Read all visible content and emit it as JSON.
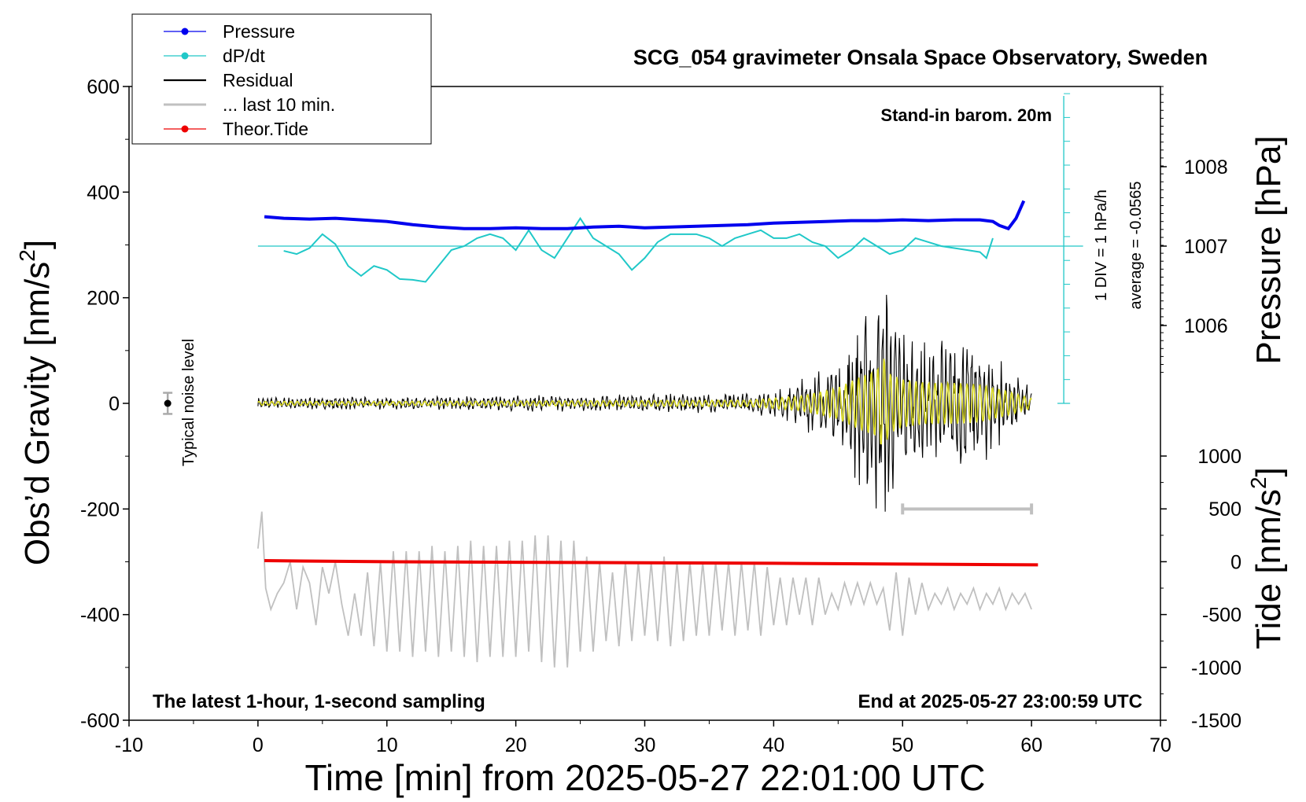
{
  "chart_data": {
    "type": "line",
    "title": "SCG_054 gravimeter Onsala Space Observatory, Sweden",
    "xlabel": "Time [min] from 2025-05-27 22:01:00 UTC",
    "xlim": [
      -10,
      70
    ],
    "x_ticks": [
      "-10",
      "0",
      "10",
      "20",
      "30",
      "40",
      "50",
      "60",
      "70"
    ],
    "left_axis": {
      "label": "Obs’d Gravity [nm/s",
      "label_sup": "2",
      "label_close": "]",
      "ylim": [
        -600,
        600
      ],
      "ticks": [
        "-600",
        "-400",
        "-200",
        "0",
        "200",
        "400",
        "600"
      ]
    },
    "right_pressure_axis": {
      "label": "Pressure [hPa]",
      "ticks": [
        "1006",
        "1007",
        "1008"
      ]
    },
    "right_tide_axis": {
      "label": "Tide [nm/s",
      "label_sup": "2",
      "label_close": "]",
      "ylim": [
        -1500,
        1000
      ],
      "ticks": [
        "-1500",
        "-1000",
        "-500",
        "0",
        "500",
        "1000"
      ]
    },
    "legend": {
      "placement": "top-left",
      "entries": [
        {
          "name": "Pressure",
          "color": "#0000ee",
          "marker": true
        },
        {
          "name": "dP/dt",
          "color": "#20c8c8",
          "marker": true
        },
        {
          "name": "Residual",
          "color": "#000000",
          "marker": false
        },
        {
          "name": "... last 10 min.",
          "color": "#c0c0c0",
          "marker": false
        },
        {
          "name": "Theor.Tide",
          "color": "#ee0000",
          "marker": true
        }
      ]
    },
    "annotations": {
      "barometer": "Stand-in barom. 20m",
      "div_note": "1 DIV = 1 hPa/h",
      "average_note": "average = -0.0565",
      "noise_label": "Typical noise level",
      "bottom_left": "The latest 1-hour, 1-second sampling",
      "bottom_right": "End at 2025-05-27 23:00:59 UTC"
    },
    "series": [
      {
        "name": "Pressure",
        "color": "#0000ee",
        "x": [
          0.5,
          2,
          4,
          6,
          8,
          10,
          12,
          14,
          16,
          18,
          20,
          22,
          24,
          26,
          28,
          30,
          32,
          34,
          36,
          38,
          40,
          42,
          44,
          46,
          48,
          50,
          52,
          54,
          56,
          57,
          57.5,
          58.2,
          58.8,
          59.4
        ],
        "y": [
          1007.37,
          1007.35,
          1007.34,
          1007.35,
          1007.33,
          1007.31,
          1007.27,
          1007.24,
          1007.22,
          1007.22,
          1007.23,
          1007.22,
          1007.22,
          1007.24,
          1007.25,
          1007.23,
          1007.24,
          1007.25,
          1007.26,
          1007.27,
          1007.29,
          1007.3,
          1007.31,
          1007.32,
          1007.32,
          1007.33,
          1007.32,
          1007.33,
          1007.33,
          1007.31,
          1007.26,
          1007.22,
          1007.35,
          1007.57
        ]
      },
      {
        "name": "dP/dt",
        "color": "#20c8c8",
        "baseline": 1007,
        "x": [
          2,
          3,
          4,
          5,
          6,
          7,
          8,
          9,
          10,
          11,
          12,
          13,
          14,
          15,
          16,
          17,
          18,
          19,
          20,
          21,
          22,
          23,
          24,
          25,
          26,
          27,
          28,
          29,
          30,
          31,
          32,
          33,
          34,
          35,
          36,
          37,
          38,
          39,
          40,
          41,
          42,
          43,
          44,
          45,
          46,
          47,
          48,
          49,
          50,
          51,
          52,
          53,
          54,
          55,
          56,
          56.5,
          57
        ],
        "y": [
          0.12,
          0.2,
          0.05,
          -0.3,
          -0.05,
          0.5,
          0.75,
          0.5,
          0.6,
          0.83,
          0.85,
          0.9,
          0.5,
          0.1,
          0.0,
          -0.2,
          -0.3,
          -0.2,
          0.1,
          -0.4,
          0.1,
          0.3,
          -0.2,
          -0.7,
          -0.2,
          0.0,
          0.2,
          0.6,
          0.3,
          -0.1,
          -0.3,
          -0.3,
          -0.3,
          -0.2,
          0.0,
          -0.2,
          -0.3,
          -0.4,
          -0.2,
          -0.2,
          -0.3,
          -0.1,
          0.0,
          0.3,
          0.1,
          -0.2,
          0.0,
          0.2,
          0.1,
          -0.2,
          -0.1,
          0.0,
          0.05,
          0.1,
          0.15,
          0.3,
          -0.2
        ]
      },
      {
        "name": "Residual",
        "color": "#000000",
        "envelope_x": [
          0,
          10,
          20,
          30,
          38,
          42,
          44,
          45,
          46,
          47,
          48,
          48.5,
          49,
          50,
          52,
          54,
          56,
          58,
          60
        ],
        "envelope_y": [
          12,
          12,
          15,
          18,
          20,
          45,
          80,
          100,
          140,
          180,
          210,
          300,
          190,
          150,
          130,
          130,
          120,
          80,
          30
        ]
      },
      {
        "name": "... last 10 min.",
        "color": "#c0c0c0",
        "x": [
          0,
          0.3,
          0.6,
          1,
          1.5,
          2,
          2.5,
          3,
          3.5,
          4,
          4.5,
          5,
          5.5,
          6,
          6.5,
          7,
          7.5,
          8,
          8.5,
          9,
          9.5,
          10,
          10.5,
          11,
          11.5,
          12,
          12.5,
          13,
          13.5,
          14,
          14.5,
          15,
          15.5,
          16,
          16.5,
          17,
          17.5,
          18,
          18.5,
          19,
          19.5,
          20,
          20.5,
          21,
          21.5,
          22,
          22.5,
          23,
          23.5,
          24,
          24.5,
          25,
          25.5,
          26,
          26.5,
          27,
          27.5,
          28,
          28.5,
          29,
          29.5,
          30,
          30.5,
          31,
          31.5,
          32,
          32.5,
          33,
          33.5,
          34,
          34.5,
          35,
          35.5,
          36,
          36.5,
          37,
          37.5,
          38,
          38.5,
          39,
          39.5,
          40,
          40.5,
          41,
          41.5,
          42,
          42.5,
          43,
          43.5,
          44,
          44.5,
          45,
          45.5,
          46,
          46.5,
          47,
          47.5,
          48,
          48.5,
          49,
          49.5,
          50,
          50.5,
          51,
          51.5,
          52,
          52.5,
          53,
          53.5,
          54,
          54.5,
          55,
          55.5,
          56,
          56.5,
          57,
          57.5,
          58,
          58.5,
          59,
          59.5,
          60
        ],
        "y": [
          -275,
          -205,
          -350,
          -390,
          -360,
          -340,
          -300,
          -390,
          -310,
          -340,
          -420,
          -310,
          -360,
          -300,
          -380,
          -440,
          -360,
          -440,
          -320,
          -460,
          -300,
          -470,
          -280,
          -470,
          -280,
          -480,
          -280,
          -470,
          -270,
          -480,
          -280,
          -470,
          -270,
          -480,
          -260,
          -490,
          -270,
          -480,
          -270,
          -480,
          -260,
          -480,
          -260,
          -470,
          -250,
          -490,
          -250,
          -500,
          -260,
          -500,
          -260,
          -470,
          -290,
          -470,
          -300,
          -450,
          -320,
          -460,
          -300,
          -450,
          -300,
          -440,
          -300,
          -450,
          -290,
          -460,
          -300,
          -450,
          -300,
          -440,
          -300,
          -440,
          -300,
          -430,
          -300,
          -440,
          -300,
          -430,
          -300,
          -440,
          -310,
          -420,
          -330,
          -420,
          -330,
          -400,
          -330,
          -420,
          -330,
          -400,
          -360,
          -390,
          -340,
          -380,
          -340,
          -380,
          -340,
          -380,
          -350,
          -430,
          -320,
          -440,
          -330,
          -400,
          -340,
          -390,
          -360,
          -380,
          -350,
          -390,
          -360,
          -380,
          -350,
          -390,
          -360,
          -380,
          -350,
          -390,
          -360,
          -380,
          -360,
          -390
        ]
      },
      {
        "name": "Theor.Tide",
        "color": "#ee0000",
        "axis": "tide",
        "x": [
          0.5,
          10,
          20,
          30,
          40,
          50,
          60.5
        ],
        "y": [
          10,
          0,
          -5,
          -10,
          -15,
          -22,
          -30
        ]
      }
    ],
    "noise_bar": {
      "x": -7,
      "y": 0,
      "half_range": 20
    },
    "last10_bar": {
      "x_start": 50,
      "x_end": 60,
      "y": -200
    },
    "dpdt_scale": {
      "x": 62.5,
      "from_pressure": 1005.0,
      "to_pressure": 1008.0,
      "div": 0.25
    }
  }
}
